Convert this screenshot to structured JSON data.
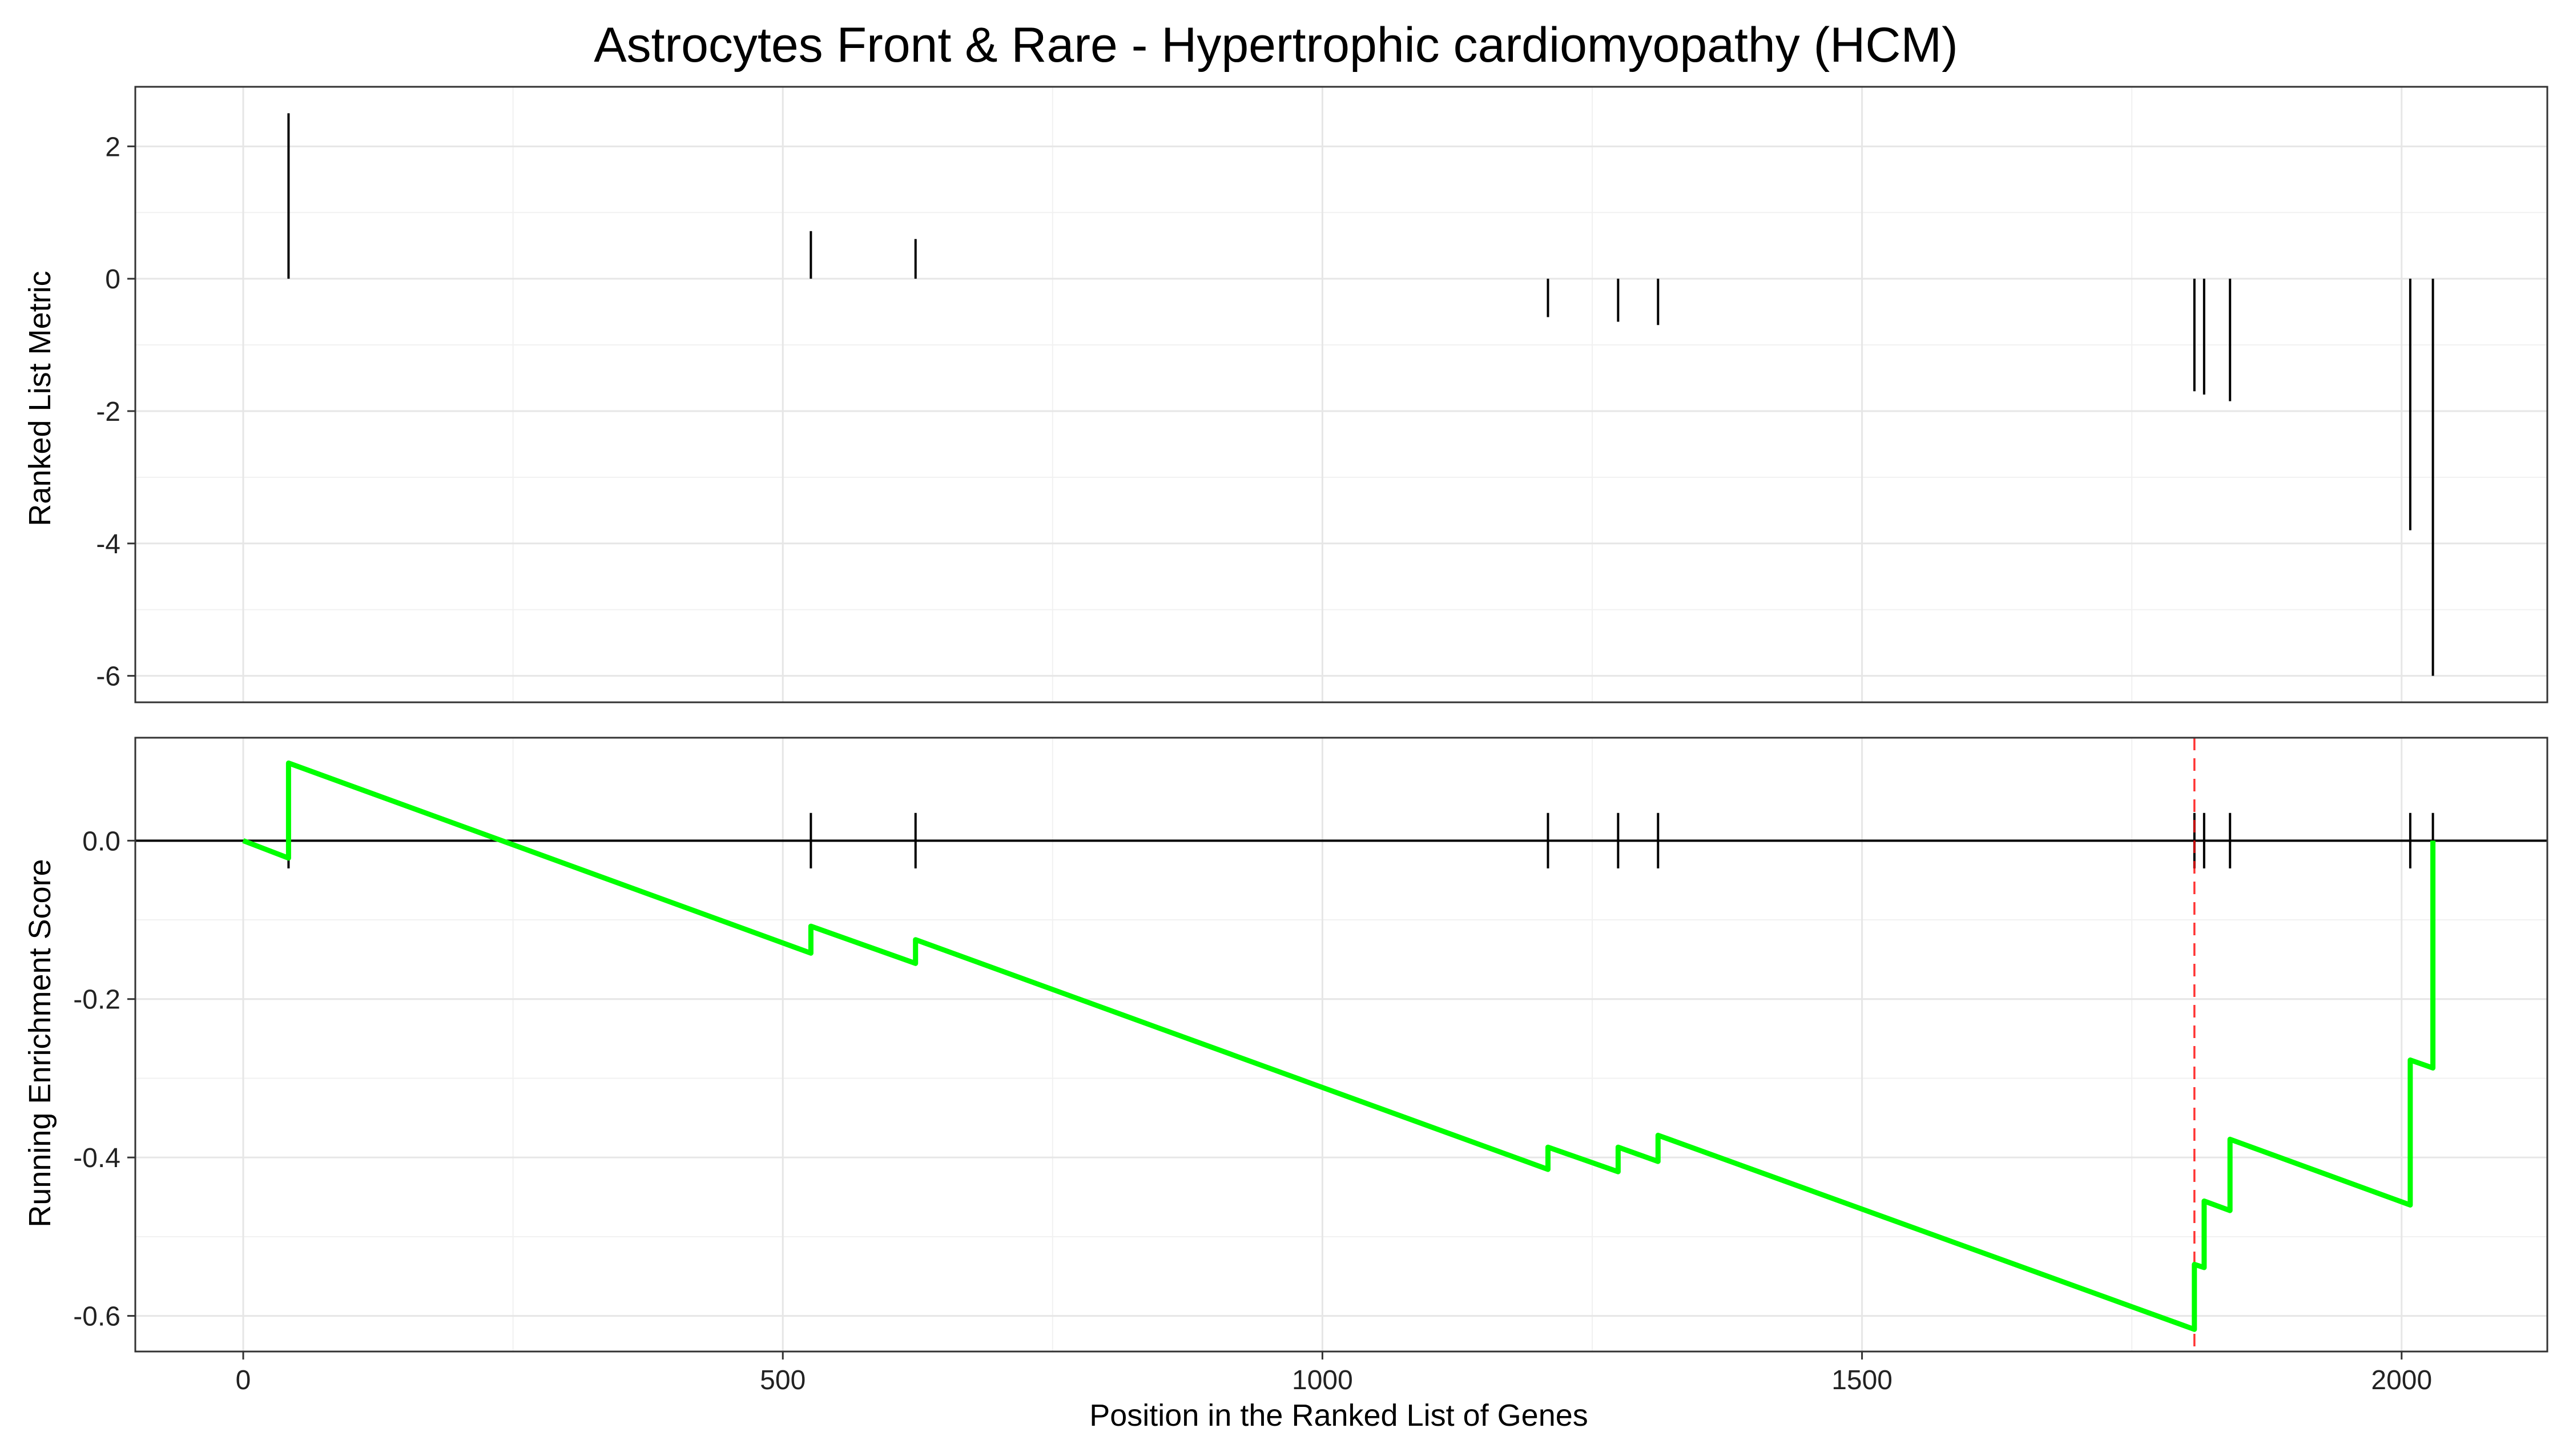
{
  "chart_data": {
    "type": "line",
    "title": "Astrocytes Front & Rare - Hypertrophic cardiomyopathy (HCM)",
    "xlabel": "Position in the Ranked List of Genes",
    "xlim": [
      -100,
      2135
    ],
    "x_ticks": [
      0,
      500,
      1000,
      1500,
      2000
    ],
    "x_tick_labels": [
      "0",
      "500",
      "1000",
      "1500",
      "2000"
    ],
    "gene_positions": [
      42,
      526,
      623,
      1209,
      1274,
      1311,
      1808,
      1817,
      1841,
      2008,
      2029
    ],
    "panels": [
      {
        "id": "ranked-metric",
        "type": "bar",
        "ylabel": "Ranked List Metric",
        "ylim": [
          -6.4,
          2.9
        ],
        "y_ticks": [
          2,
          0,
          -2,
          -4,
          -6
        ],
        "y_tick_labels": [
          "2",
          "0",
          "-2",
          "-4",
          "-6"
        ],
        "values": [
          2.5,
          0.72,
          0.6,
          -0.58,
          -0.65,
          -0.7,
          -1.7,
          -1.75,
          -1.85,
          -3.8,
          -6.0
        ]
      },
      {
        "id": "running-es",
        "type": "line",
        "ylabel": "Running Enrichment Score",
        "ylim": [
          -0.645,
          0.13
        ],
        "y_ticks": [
          0.0,
          -0.2,
          -0.4,
          -0.6
        ],
        "y_tick_labels": [
          "0.0",
          "-0.2",
          "-0.4",
          "-0.6"
        ],
        "line_color": "#00ff00",
        "peak_line_color": "#ff0000",
        "peak_position": 1808,
        "hit_tick_half_height": 0.035,
        "series": [
          {
            "x": [
              0,
              42,
              42,
              526,
              526,
              623,
              623,
              1209,
              1209,
              1274,
              1274,
              1311,
              1311,
              1808,
              1808,
              1817,
              1817,
              1841,
              1841,
              2008,
              2008,
              2029,
              2029
            ],
            "y": [
              0.0,
              -0.022,
              0.098,
              -0.142,
              -0.108,
              -0.155,
              -0.125,
              -0.415,
              -0.387,
              -0.418,
              -0.387,
              -0.405,
              -0.372,
              -0.617,
              -0.535,
              -0.539,
              -0.455,
              -0.467,
              -0.377,
              -0.46,
              -0.277,
              -0.287,
              0.0
            ]
          }
        ]
      }
    ]
  }
}
